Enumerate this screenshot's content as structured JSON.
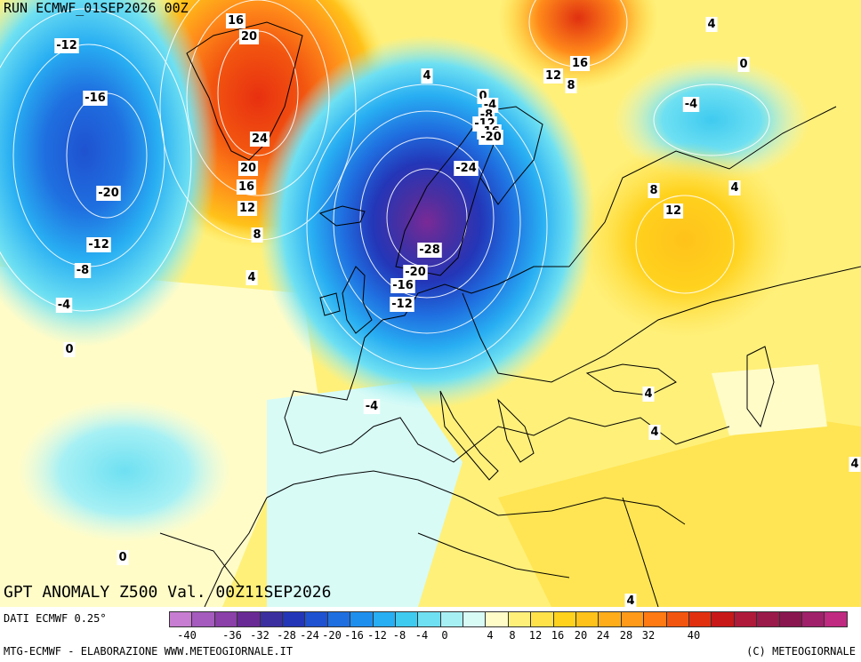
{
  "run_title": "RUN ECMWF_01SEP2026 00Z",
  "map_title": "GPT ANOMALY Z500 Val. 00Z11SEP2026",
  "data_source": "DATI ECMWF 0.25°",
  "credit_left": "MTG-ECMWF - ELABORAZIONE WWW.METEOGIORNALE.IT",
  "credit_right": "(C) METEOGIORNALE",
  "legend": {
    "ticks": [
      "-40",
      "-36",
      "-32",
      "-28",
      "-24",
      "-20",
      "-16",
      "-12",
      "-8",
      "-4",
      "0",
      "4",
      "8",
      "12",
      "16",
      "20",
      "24",
      "28",
      "32",
      "40"
    ],
    "colors": [
      "#c77dd1",
      "#a45bbd",
      "#8a40a8",
      "#6a2a96",
      "#3b2fa0",
      "#2336b8",
      "#1f52d0",
      "#1f6fe0",
      "#1f8fee",
      "#28aef2",
      "#3fcaf0",
      "#6ee0f2",
      "#a6f0f4",
      "#d8fbf6",
      "#fffcc8",
      "#fff07a",
      "#ffe24a",
      "#ffd21e",
      "#ffc21a",
      "#ffad1a",
      "#ff9a1a",
      "#ff7a12",
      "#f25510",
      "#e03010",
      "#c81818",
      "#b01a3a",
      "#9a1a4a",
      "#8a1650",
      "#a0206a",
      "#c02a80"
    ]
  },
  "contour_labels": [
    {
      "v": "16"
    },
    {
      "v": "20"
    },
    {
      "v": "24"
    },
    {
      "v": "20"
    },
    {
      "v": "16"
    },
    {
      "v": "12"
    },
    {
      "v": "8"
    },
    {
      "v": "4"
    },
    {
      "v": "-12"
    },
    {
      "v": "-16"
    },
    {
      "v": "-20"
    },
    {
      "v": "-12"
    },
    {
      "v": "-8"
    },
    {
      "v": "-4"
    },
    {
      "v": "0"
    },
    {
      "v": "0"
    },
    {
      "v": "-4"
    },
    {
      "v": "-8"
    },
    {
      "v": "-12"
    },
    {
      "v": "-16"
    },
    {
      "v": "-20"
    },
    {
      "v": "-24"
    },
    {
      "v": "-28"
    },
    {
      "v": "-20"
    },
    {
      "v": "-16"
    },
    {
      "v": "-12"
    },
    {
      "v": "-4"
    },
    {
      "v": "4"
    },
    {
      "v": "12"
    },
    {
      "v": "8"
    },
    {
      "v": "16"
    },
    {
      "v": "4"
    },
    {
      "v": "0"
    },
    {
      "v": "-4"
    },
    {
      "v": "8"
    },
    {
      "v": "12"
    },
    {
      "v": "4"
    },
    {
      "v": "4"
    },
    {
      "v": "4"
    },
    {
      "v": "4"
    },
    {
      "v": "4"
    },
    {
      "v": "0"
    }
  ]
}
